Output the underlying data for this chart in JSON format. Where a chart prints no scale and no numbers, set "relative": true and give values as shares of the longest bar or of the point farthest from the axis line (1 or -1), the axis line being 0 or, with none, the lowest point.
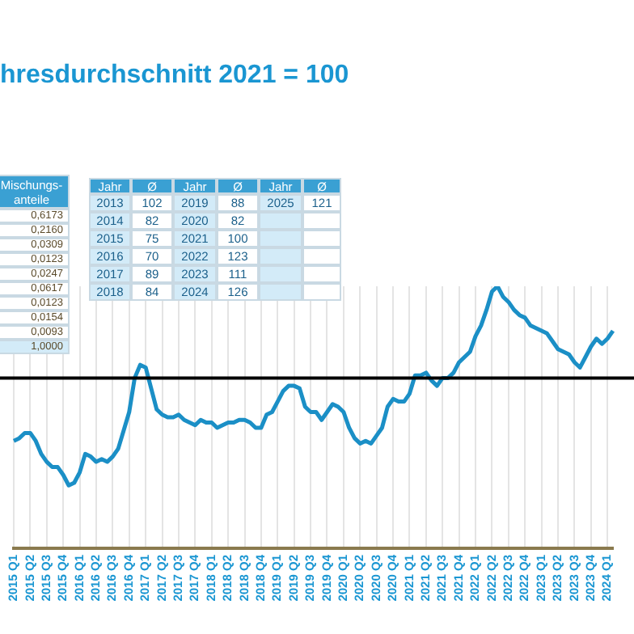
{
  "chart_data": {
    "type": "line",
    "title": "hresdurchschnitt 2021 = 100",
    "relative": true,
    "grid": "x",
    "legend": false,
    "marker": "none",
    "line_style": "solid",
    "categories": [
      "2015 Q1",
      null,
      null,
      "2015 Q2",
      null,
      null,
      "2015 Q3",
      null,
      null,
      "2015 Q4",
      null,
      null,
      "2016 Q1",
      null,
      null,
      "2016 Q2",
      null,
      null,
      "2016 Q3",
      null,
      null,
      "2016 Q4",
      null,
      null,
      "2017 Q1",
      null,
      null,
      "2017 Q2",
      null,
      null,
      "2017 Q3",
      null,
      null,
      "2017 Q4",
      null,
      null,
      "2018 Q1",
      null,
      null,
      "2018 Q2",
      null,
      null,
      "2018 Q3",
      null,
      null,
      "2018 Q4",
      null,
      null,
      "2019 Q1",
      null,
      null,
      "2019 Q2",
      null,
      null,
      "2019 Q3",
      null,
      null,
      "2019 Q4",
      null,
      null,
      "2020 Q1",
      null,
      null,
      "2020 Q2",
      null,
      null,
      "2020 Q3",
      null,
      null,
      "2020 Q4",
      null,
      null,
      "2021 Q1",
      null,
      null,
      "2021 Q2",
      null,
      null,
      "2021 Q3",
      null,
      null,
      "2021 Q4",
      null,
      null,
      "2022 Q1",
      null,
      null,
      "2022 Q2",
      null,
      null,
      "2022 Q3",
      null,
      null,
      "2022 Q4",
      null,
      null,
      "2023 Q1",
      null,
      null,
      "2023 Q2",
      null,
      null,
      "2023 Q3",
      null,
      null,
      "2023 Q4",
      null,
      null,
      "2024 Q1",
      null
    ],
    "series": [
      {
        "color": "#1b8fc6",
        "values": [
          0.41,
          0.42,
          0.44,
          0.44,
          0.41,
          0.36,
          0.33,
          0.31,
          0.31,
          0.28,
          0.24,
          0.25,
          0.29,
          0.36,
          0.35,
          0.33,
          0.34,
          0.33,
          0.35,
          0.38,
          0.45,
          0.52,
          0.65,
          0.7,
          0.69,
          0.61,
          0.53,
          0.51,
          0.5,
          0.5,
          0.51,
          0.49,
          0.48,
          0.47,
          0.49,
          0.48,
          0.48,
          0.46,
          0.47,
          0.48,
          0.48,
          0.49,
          0.49,
          0.48,
          0.46,
          0.46,
          0.51,
          0.52,
          0.56,
          0.6,
          0.62,
          0.62,
          0.61,
          0.54,
          0.52,
          0.52,
          0.49,
          0.52,
          0.55,
          0.54,
          0.52,
          0.46,
          0.42,
          0.4,
          0.41,
          0.4,
          0.43,
          0.46,
          0.54,
          0.57,
          0.56,
          0.56,
          0.59,
          0.66,
          0.66,
          0.67,
          0.64,
          0.62,
          0.65,
          0.65,
          0.67,
          0.71,
          0.73,
          0.75,
          0.81,
          0.85,
          0.91,
          0.98,
          1,
          0.96,
          0.94,
          0.91,
          0.89,
          0.88,
          0.85,
          0.84,
          0.83,
          0.82,
          0.79,
          0.76,
          0.75,
          0.74,
          0.71,
          0.69,
          0.73,
          0.77,
          0.8,
          0.78,
          0.8,
          0.83
        ]
      }
    ],
    "ref_lines": [
      {
        "axis": "y",
        "value": 0.65,
        "color": "#000000"
      }
    ],
    "annotations": [
      "Mischungs-anteile",
      "0,6173",
      "0,2160",
      "0,0309",
      "0,0123",
      "0,0247",
      "0,0617",
      "0,0123",
      "0,0154",
      "0,0093",
      "1,0000",
      "Jahr",
      "Ø",
      "Jahr",
      "Ø",
      "Jahr",
      "Ø",
      "2013",
      "102",
      "2019",
      "88",
      "2025",
      "121",
      "2014",
      "82",
      "2020",
      "82",
      "2015",
      "75",
      "2021",
      "100",
      "2016",
      "70",
      "2022",
      "123",
      "2017",
      "89",
      "2023",
      "111",
      "2018",
      "84",
      "2024",
      "126"
    ]
  }
}
